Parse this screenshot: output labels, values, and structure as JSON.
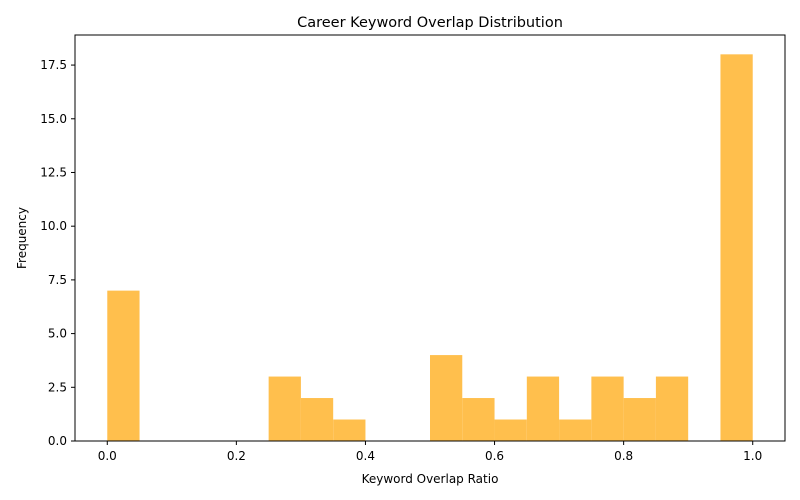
{
  "chart_data": {
    "type": "bar",
    "title": "Career Keyword Overlap Distribution",
    "xlabel": "Keyword Overlap Ratio",
    "ylabel": "Frequency",
    "xlim": [
      -0.05,
      1.05
    ],
    "ylim": [
      0,
      18.9
    ],
    "xticks": [
      0.0,
      0.2,
      0.4,
      0.6,
      0.8,
      1.0
    ],
    "xtick_labels": [
      "0.0",
      "0.2",
      "0.4",
      "0.6",
      "0.8",
      "1.0"
    ],
    "yticks": [
      0,
      2.5,
      5,
      7.5,
      10,
      12.5,
      15,
      17.5
    ],
    "ytick_labels": [
      "0.0",
      "2.5",
      "5.0",
      "7.5",
      "10.0",
      "12.5",
      "15.0",
      "17.5"
    ],
    "bin_edges": [
      0.0,
      0.05,
      0.1,
      0.15,
      0.2,
      0.25,
      0.3,
      0.35,
      0.4,
      0.45,
      0.5,
      0.55,
      0.6,
      0.65,
      0.7,
      0.75,
      0.8,
      0.85,
      0.9,
      0.95,
      1.0
    ],
    "values": [
      7,
      0,
      0,
      0,
      0,
      3,
      2,
      1,
      0,
      0,
      4,
      2,
      1,
      3,
      1,
      3,
      2,
      3,
      0,
      18
    ],
    "bar_color": "#ffbf4d",
    "grid": false,
    "legend": null
  }
}
